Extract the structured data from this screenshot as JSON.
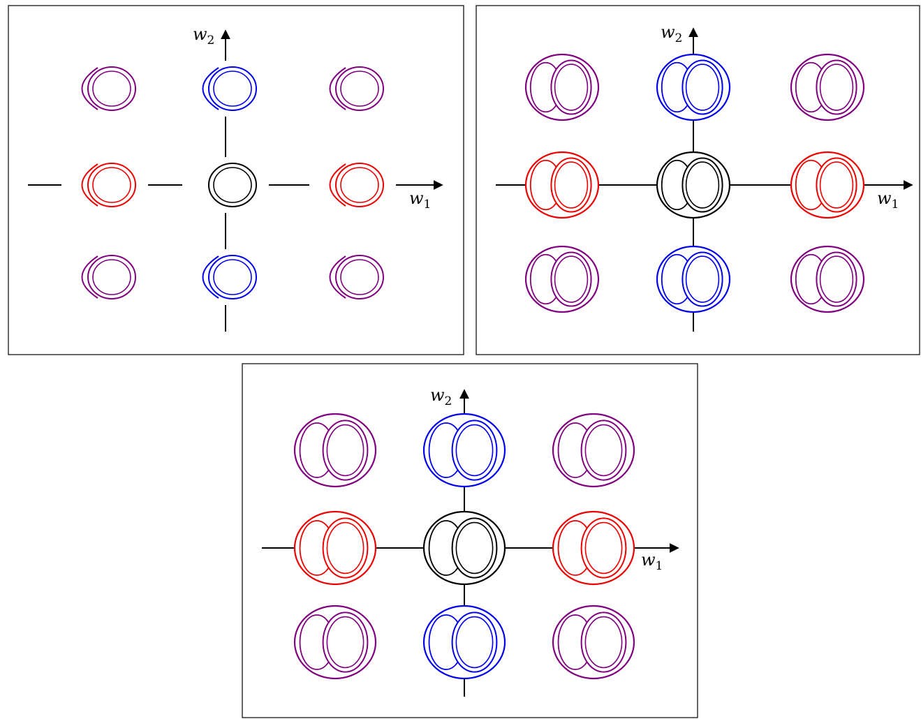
{
  "panels": [
    {
      "x_label": "w",
      "x_sub": "1",
      "y_label": "w",
      "y_sub": "2"
    },
    {
      "x_label": "w",
      "x_sub": "1",
      "y_label": "w",
      "y_sub": "2"
    },
    {
      "x_label": "w",
      "x_sub": "1",
      "y_label": "w",
      "y_sub": "2"
    }
  ]
}
